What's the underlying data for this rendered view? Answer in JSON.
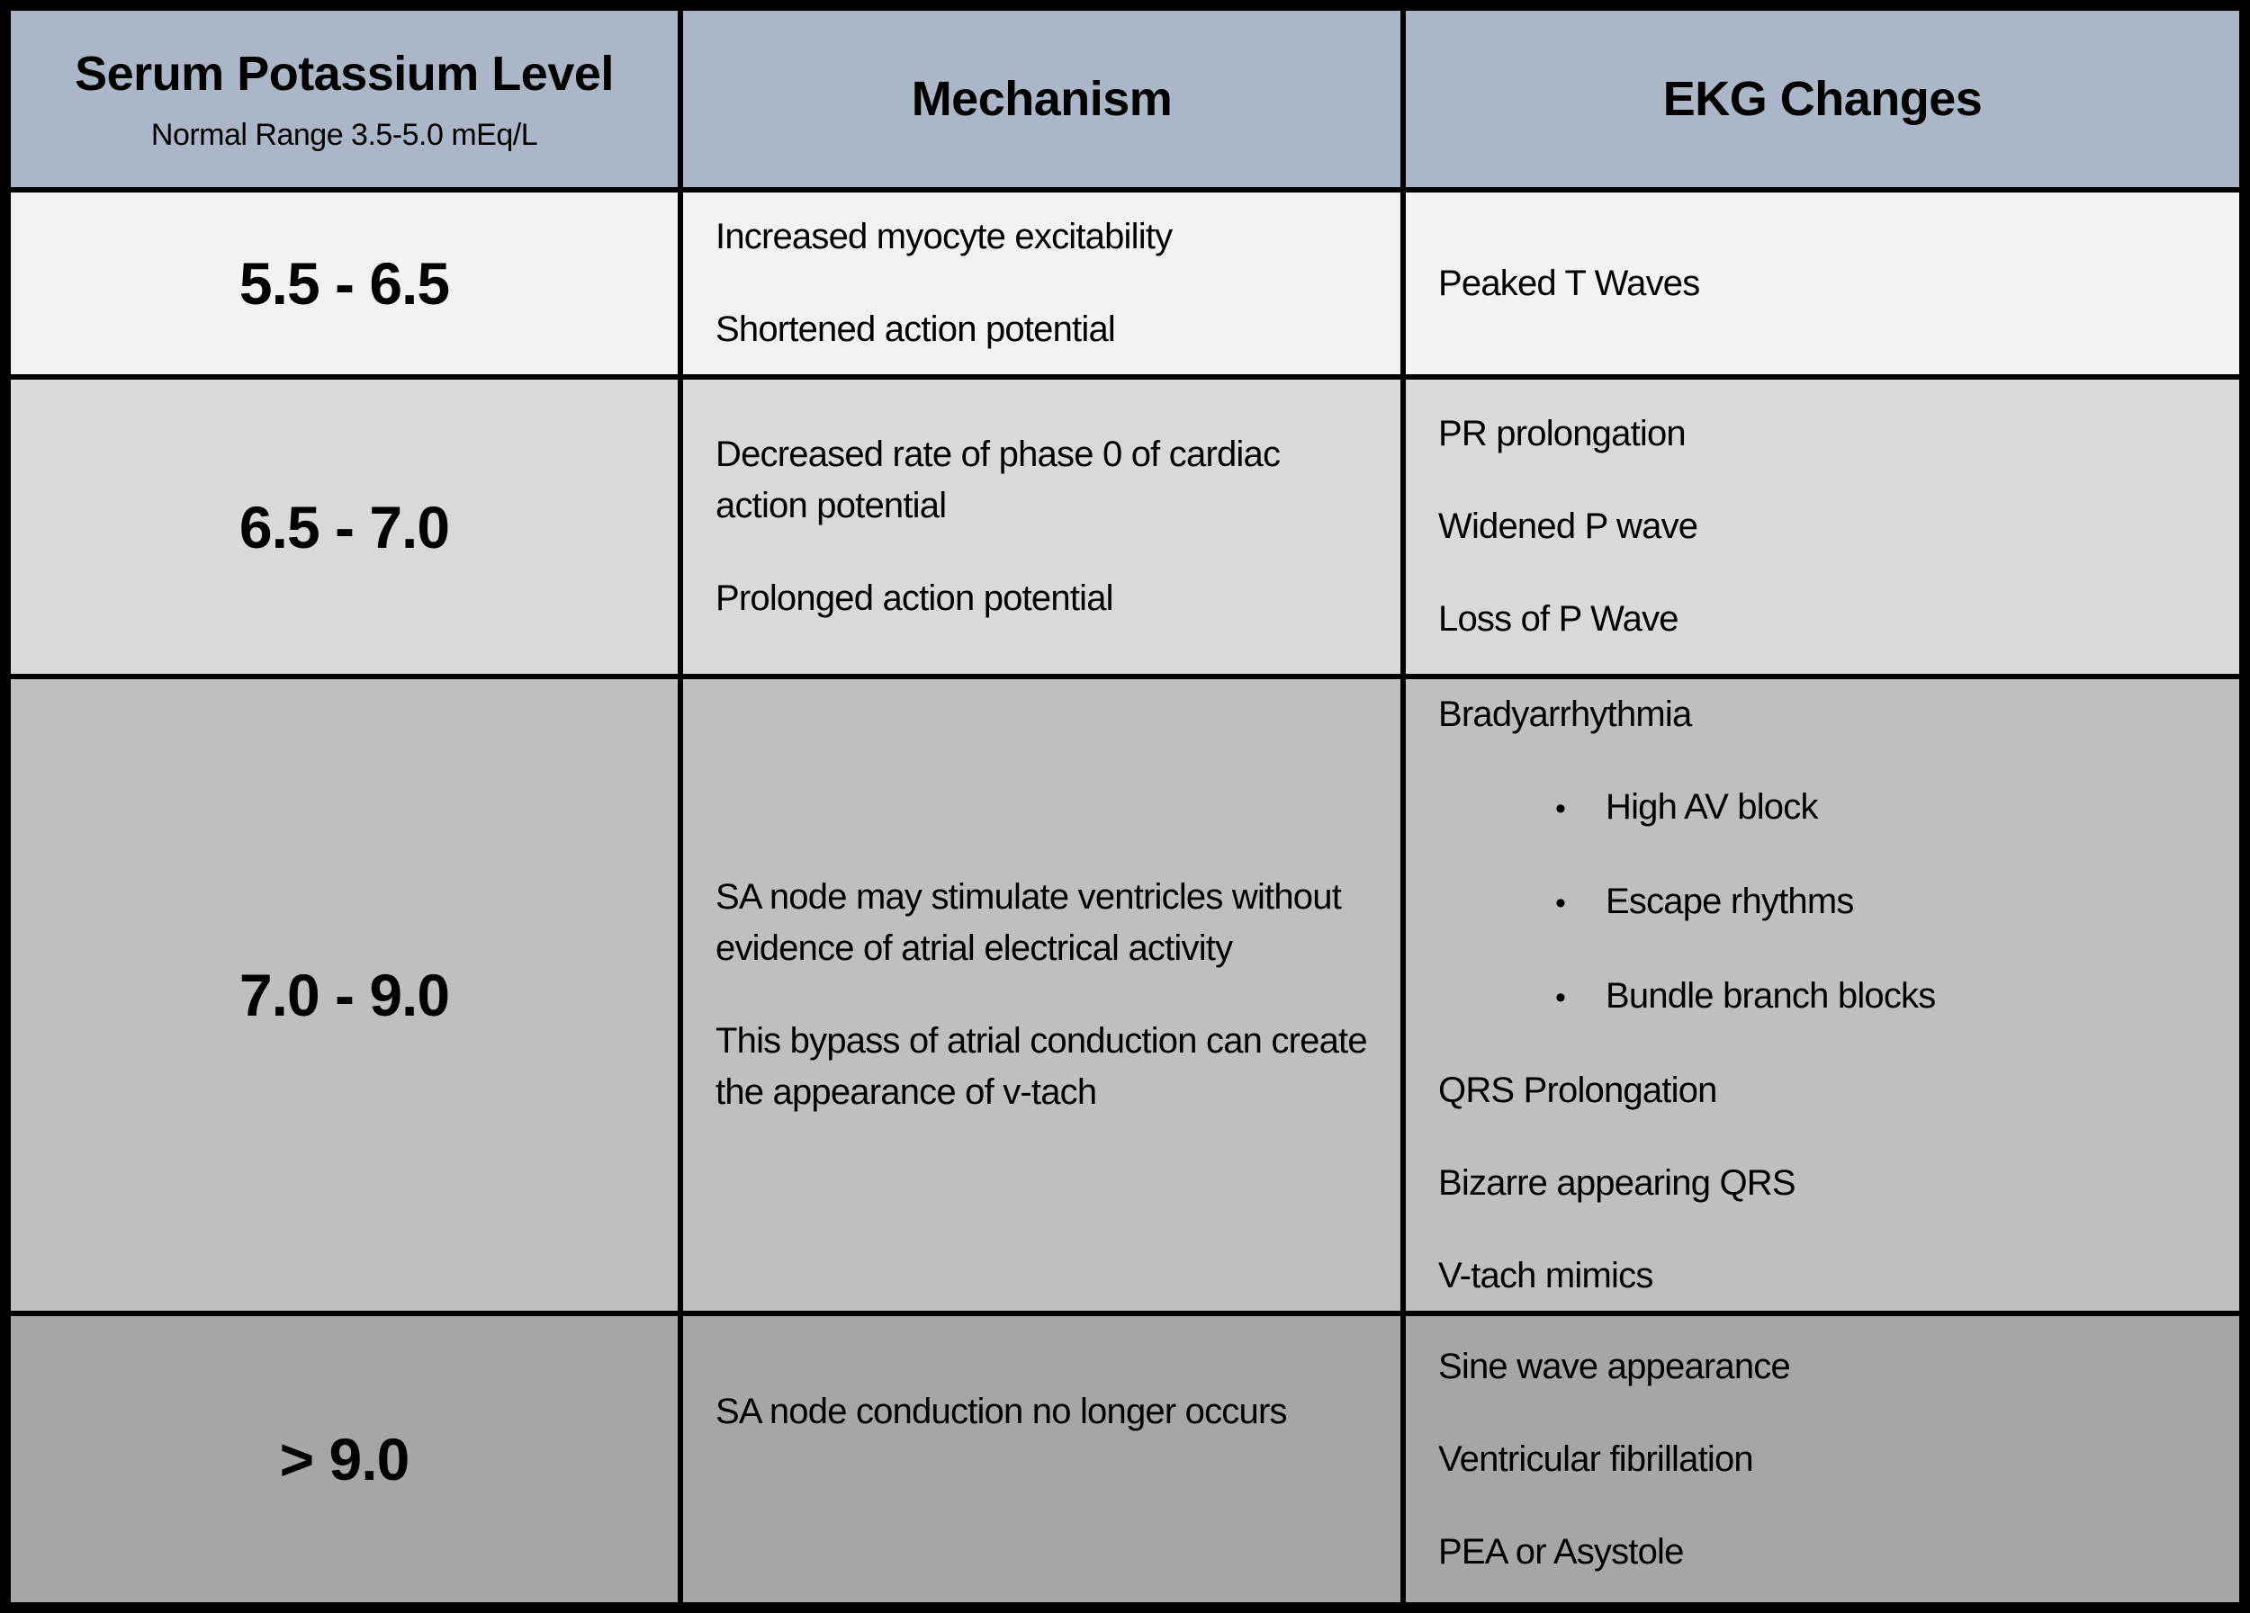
{
  "colors": {
    "header_bg": "#abb6c8",
    "row1_bg": "#f2f2f2",
    "row2_bg": "#d9d9d9",
    "row3_bg": "#bfbfbf",
    "row4_bg": "#a6a6a6",
    "gridline": "#000000",
    "text": "#000000"
  },
  "bullet_char": "•",
  "header": {
    "col1_title": "Serum Potassium Level",
    "col1_subtitle": "Normal Range 3.5-5.0 mEq/L",
    "col2_title": "Mechanism",
    "col3_title": "EKG Changes"
  },
  "rows": [
    {
      "level": "5.5 - 6.5",
      "mechanism": [
        "Increased myocyte excitability",
        "Shortened action potential"
      ],
      "ekg": [
        "Peaked T Waves"
      ]
    },
    {
      "level": "6.5 - 7.0",
      "mechanism": [
        "Decreased rate of phase 0 of cardiac action potential",
        "Prolonged action potential"
      ],
      "ekg": [
        "PR prolongation",
        "Widened P wave",
        "Loss of P Wave"
      ]
    },
    {
      "level": "7.0 - 9.0",
      "mechanism": [
        "SA node may stimulate ventricles without evidence of atrial electrical activity",
        "This bypass of atrial conduction can create the appearance of v-tach"
      ],
      "ekg": [
        {
          "text": "Bradyarrhythmia",
          "bullet": false
        },
        {
          "text": "High AV block",
          "bullet": true
        },
        {
          "text": "Escape rhythms",
          "bullet": true
        },
        {
          "text": "Bundle branch blocks",
          "bullet": true
        },
        {
          "text": "QRS Prolongation",
          "bullet": false
        },
        {
          "text": "Bizarre appearing QRS",
          "bullet": false
        },
        {
          "text": "V-tach mimics",
          "bullet": false
        }
      ]
    },
    {
      "level": "> 9.0",
      "mechanism": [
        "SA node conduction no longer occurs"
      ],
      "ekg": [
        "Sine wave appearance",
        "Ventricular fibrillation",
        "PEA or Asystole"
      ]
    }
  ]
}
